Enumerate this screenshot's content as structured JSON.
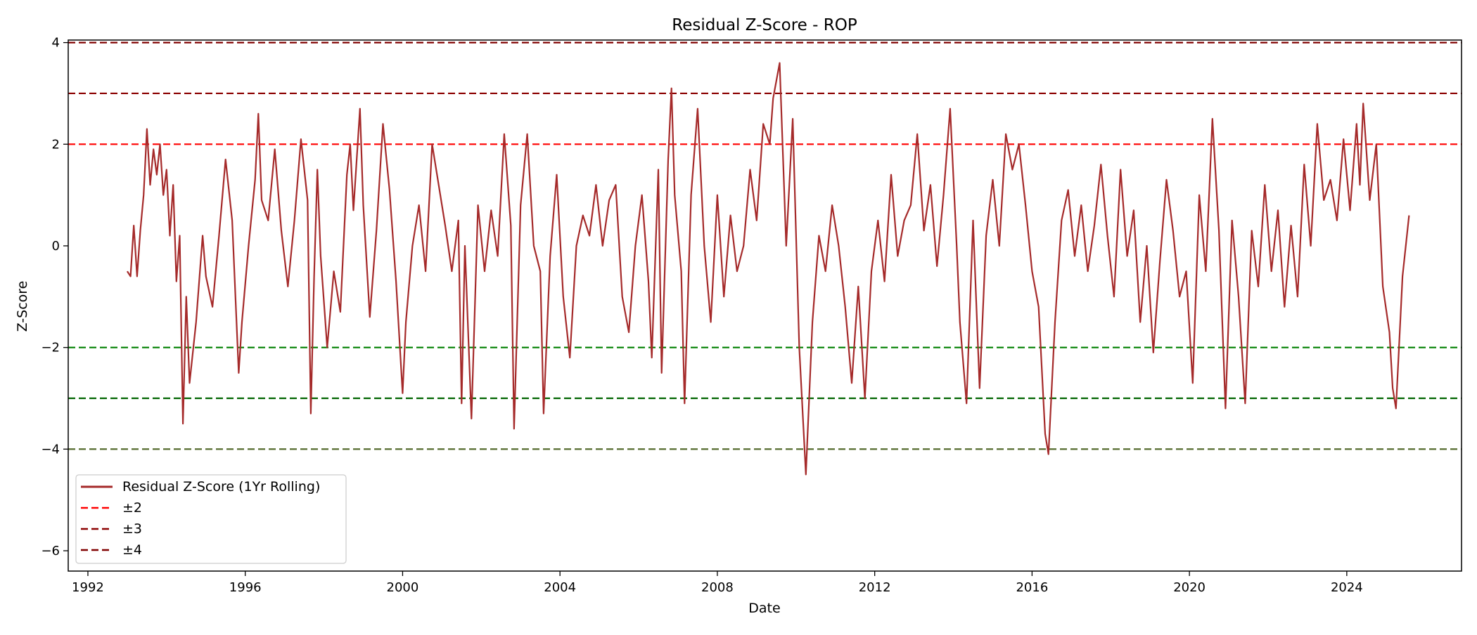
{
  "chart_data": {
    "type": "line",
    "title": "Residual Z-Score - ROP",
    "xlabel": "Date",
    "ylabel": "Z-Score",
    "xlim": [
      "1991-07-01",
      "2026-12-01"
    ],
    "ylim": [
      -6.4,
      4.05
    ],
    "x_ticks": [
      "1992",
      "1996",
      "2000",
      "2004",
      "2008",
      "2012",
      "2016",
      "2020",
      "2024"
    ],
    "y_ticks": [
      {
        "value": 4,
        "label": "4"
      },
      {
        "value": 2,
        "label": "2"
      },
      {
        "value": 0,
        "label": "0"
      },
      {
        "value": -2,
        "label": "−2"
      },
      {
        "value": -4,
        "label": "−4"
      },
      {
        "value": -6,
        "label": "−6"
      }
    ],
    "grid": false,
    "legend_position": "lower-left",
    "legend": [
      "Residual Z-Score (1Yr Rolling)",
      "±2",
      "±3",
      "±4"
    ],
    "series": [
      {
        "name": "Residual Z-Score (1Yr Rolling)",
        "color": "#a52a2a",
        "points": [
          [
            "1993-01",
            -0.5
          ],
          [
            "1993-02",
            -0.6
          ],
          [
            "1993-03",
            0.4
          ],
          [
            "1993-04",
            -0.6
          ],
          [
            "1993-05",
            0.3
          ],
          [
            "1993-06",
            1.0
          ],
          [
            "1993-07",
            2.3
          ],
          [
            "1993-08",
            1.2
          ],
          [
            "1993-09",
            1.9
          ],
          [
            "1993-10",
            1.4
          ],
          [
            "1993-11",
            2.0
          ],
          [
            "1993-12",
            1.0
          ],
          [
            "1994-01",
            1.5
          ],
          [
            "1994-02",
            0.2
          ],
          [
            "1994-03",
            1.2
          ],
          [
            "1994-04",
            -0.7
          ],
          [
            "1994-05",
            0.2
          ],
          [
            "1994-06",
            -3.5
          ],
          [
            "1994-07",
            -1.0
          ],
          [
            "1994-08",
            -2.7
          ],
          [
            "1994-10",
            -1.5
          ],
          [
            "1994-12",
            0.2
          ],
          [
            "1995-01",
            -0.6
          ],
          [
            "1995-03",
            -1.2
          ],
          [
            "1995-05",
            0.2
          ],
          [
            "1995-07",
            1.7
          ],
          [
            "1995-09",
            0.5
          ],
          [
            "1995-11",
            -2.5
          ],
          [
            "1995-12",
            -1.5
          ],
          [
            "1996-02",
            0.0
          ],
          [
            "1996-04",
            1.3
          ],
          [
            "1996-05",
            2.6
          ],
          [
            "1996-06",
            0.9
          ],
          [
            "1996-08",
            0.5
          ],
          [
            "1996-10",
            1.9
          ],
          [
            "1996-12",
            0.3
          ],
          [
            "1997-02",
            -0.8
          ],
          [
            "1997-04",
            0.5
          ],
          [
            "1997-06",
            2.1
          ],
          [
            "1997-08",
            0.9
          ],
          [
            "1997-09",
            -3.3
          ],
          [
            "1997-10",
            -0.6
          ],
          [
            "1997-11",
            1.5
          ],
          [
            "1997-12",
            -0.2
          ],
          [
            "1998-02",
            -2.0
          ],
          [
            "1998-04",
            -0.5
          ],
          [
            "1998-06",
            -1.3
          ],
          [
            "1998-08",
            1.4
          ],
          [
            "1998-09",
            2.0
          ],
          [
            "1998-10",
            0.7
          ],
          [
            "1998-12",
            2.7
          ],
          [
            "1999-01",
            0.8
          ],
          [
            "1999-03",
            -1.4
          ],
          [
            "1999-05",
            0.3
          ],
          [
            "1999-07",
            2.4
          ],
          [
            "1999-09",
            1.1
          ],
          [
            "1999-11",
            -0.7
          ],
          [
            "2000-01",
            -2.9
          ],
          [
            "2000-02",
            -1.5
          ],
          [
            "2000-04",
            0.0
          ],
          [
            "2000-06",
            0.8
          ],
          [
            "2000-08",
            -0.5
          ],
          [
            "2000-10",
            2.0
          ],
          [
            "2000-12",
            1.2
          ],
          [
            "2001-02",
            0.4
          ],
          [
            "2001-04",
            -0.5
          ],
          [
            "2001-06",
            0.5
          ],
          [
            "2001-07",
            -3.1
          ],
          [
            "2001-08",
            0.0
          ],
          [
            "2001-10",
            -3.4
          ],
          [
            "2001-12",
            0.8
          ],
          [
            "2002-02",
            -0.5
          ],
          [
            "2002-04",
            0.7
          ],
          [
            "2002-06",
            -0.2
          ],
          [
            "2002-08",
            2.2
          ],
          [
            "2002-10",
            0.4
          ],
          [
            "2002-11",
            -3.6
          ],
          [
            "2003-01",
            0.8
          ],
          [
            "2003-03",
            2.2
          ],
          [
            "2003-05",
            0.0
          ],
          [
            "2003-07",
            -0.5
          ],
          [
            "2003-08",
            -3.3
          ],
          [
            "2003-10",
            -0.2
          ],
          [
            "2003-12",
            1.4
          ],
          [
            "2004-02",
            -1.0
          ],
          [
            "2004-04",
            -2.2
          ],
          [
            "2004-06",
            0.0
          ],
          [
            "2004-08",
            0.6
          ],
          [
            "2004-10",
            0.2
          ],
          [
            "2004-12",
            1.2
          ],
          [
            "2005-02",
            0.0
          ],
          [
            "2005-04",
            0.9
          ],
          [
            "2005-06",
            1.2
          ],
          [
            "2005-08",
            -1.0
          ],
          [
            "2005-10",
            -1.7
          ],
          [
            "2005-12",
            0.0
          ],
          [
            "2006-02",
            1.0
          ],
          [
            "2006-04",
            -0.7
          ],
          [
            "2006-05",
            -2.2
          ],
          [
            "2006-07",
            1.5
          ],
          [
            "2006-08",
            -2.5
          ],
          [
            "2006-10",
            1.7
          ],
          [
            "2006-11",
            3.1
          ],
          [
            "2006-12",
            1.0
          ],
          [
            "2007-02",
            -0.5
          ],
          [
            "2007-03",
            -3.1
          ],
          [
            "2007-05",
            1.0
          ],
          [
            "2007-07",
            2.7
          ],
          [
            "2007-09",
            0.0
          ],
          [
            "2007-11",
            -1.5
          ],
          [
            "2008-01",
            1.0
          ],
          [
            "2008-03",
            -1.0
          ],
          [
            "2008-05",
            0.6
          ],
          [
            "2008-07",
            -0.5
          ],
          [
            "2008-09",
            0.0
          ],
          [
            "2008-11",
            1.5
          ],
          [
            "2009-01",
            0.5
          ],
          [
            "2009-03",
            2.4
          ],
          [
            "2009-05",
            2.0
          ],
          [
            "2009-06",
            2.9
          ],
          [
            "2009-08",
            3.6
          ],
          [
            "2009-10",
            0.0
          ],
          [
            "2009-12",
            2.5
          ],
          [
            "2010-02",
            -2.0
          ],
          [
            "2010-04",
            -4.5
          ],
          [
            "2010-06",
            -1.5
          ],
          [
            "2010-08",
            0.2
          ],
          [
            "2010-10",
            -0.5
          ],
          [
            "2010-12",
            0.8
          ],
          [
            "2011-02",
            0.0
          ],
          [
            "2011-04",
            -1.2
          ],
          [
            "2011-06",
            -2.7
          ],
          [
            "2011-08",
            -0.8
          ],
          [
            "2011-10",
            -3.0
          ],
          [
            "2011-12",
            -0.5
          ],
          [
            "2012-02",
            0.5
          ],
          [
            "2012-04",
            -0.7
          ],
          [
            "2012-06",
            1.4
          ],
          [
            "2012-08",
            -0.2
          ],
          [
            "2012-10",
            0.5
          ],
          [
            "2012-12",
            0.8
          ],
          [
            "2013-02",
            2.2
          ],
          [
            "2013-04",
            0.3
          ],
          [
            "2013-06",
            1.2
          ],
          [
            "2013-08",
            -0.4
          ],
          [
            "2013-10",
            1.0
          ],
          [
            "2013-12",
            2.7
          ],
          [
            "2014-02",
            0.0
          ],
          [
            "2014-03",
            -1.5
          ],
          [
            "2014-05",
            -3.1
          ],
          [
            "2014-07",
            0.5
          ],
          [
            "2014-09",
            -2.8
          ],
          [
            "2014-11",
            0.2
          ],
          [
            "2015-01",
            1.3
          ],
          [
            "2015-03",
            0.0
          ],
          [
            "2015-05",
            2.2
          ],
          [
            "2015-07",
            1.5
          ],
          [
            "2015-09",
            2.0
          ],
          [
            "2015-11",
            0.8
          ],
          [
            "2016-01",
            -0.5
          ],
          [
            "2016-03",
            -1.2
          ],
          [
            "2016-05",
            -3.7
          ],
          [
            "2016-06",
            -4.1
          ],
          [
            "2016-08",
            -1.5
          ],
          [
            "2016-10",
            0.5
          ],
          [
            "2016-12",
            1.1
          ],
          [
            "2017-02",
            -0.2
          ],
          [
            "2017-04",
            0.8
          ],
          [
            "2017-06",
            -0.5
          ],
          [
            "2017-08",
            0.4
          ],
          [
            "2017-10",
            1.6
          ],
          [
            "2017-12",
            0.2
          ],
          [
            "2018-02",
            -1.0
          ],
          [
            "2018-04",
            1.5
          ],
          [
            "2018-06",
            -0.2
          ],
          [
            "2018-08",
            0.7
          ],
          [
            "2018-10",
            -1.5
          ],
          [
            "2018-12",
            0.0
          ],
          [
            "2019-02",
            -2.1
          ],
          [
            "2019-04",
            -0.3
          ],
          [
            "2019-06",
            1.3
          ],
          [
            "2019-08",
            0.3
          ],
          [
            "2019-10",
            -1.0
          ],
          [
            "2019-12",
            -0.5
          ],
          [
            "2020-02",
            -2.7
          ],
          [
            "2020-04",
            1.0
          ],
          [
            "2020-06",
            -0.5
          ],
          [
            "2020-08",
            2.5
          ],
          [
            "2020-10",
            0.3
          ],
          [
            "2020-12",
            -3.2
          ],
          [
            "2021-02",
            0.5
          ],
          [
            "2021-04",
            -1.0
          ],
          [
            "2021-06",
            -3.1
          ],
          [
            "2021-08",
            0.3
          ],
          [
            "2021-10",
            -0.8
          ],
          [
            "2021-12",
            1.2
          ],
          [
            "2022-02",
            -0.5
          ],
          [
            "2022-04",
            0.7
          ],
          [
            "2022-06",
            -1.2
          ],
          [
            "2022-08",
            0.4
          ],
          [
            "2022-10",
            -1.0
          ],
          [
            "2022-12",
            1.6
          ],
          [
            "2023-02",
            0.0
          ],
          [
            "2023-04",
            2.4
          ],
          [
            "2023-06",
            0.9
          ],
          [
            "2023-08",
            1.3
          ],
          [
            "2023-10",
            0.5
          ],
          [
            "2023-12",
            2.1
          ],
          [
            "2024-02",
            0.7
          ],
          [
            "2024-04",
            2.4
          ],
          [
            "2024-05",
            1.2
          ],
          [
            "2024-06",
            2.8
          ],
          [
            "2024-08",
            0.9
          ],
          [
            "2024-10",
            2.0
          ],
          [
            "2024-12",
            -0.8
          ],
          [
            "2025-02",
            -1.7
          ],
          [
            "2025-03",
            -2.8
          ],
          [
            "2025-04",
            -3.2
          ],
          [
            "2025-06",
            -0.6
          ],
          [
            "2025-08",
            0.6
          ]
        ]
      }
    ],
    "reference_lines": [
      {
        "group": "±2",
        "value": 2,
        "color": "#ff0000"
      },
      {
        "group": "±2",
        "value": -2,
        "color": "#008000"
      },
      {
        "group": "±3",
        "value": 3,
        "color": "#8b0000"
      },
      {
        "group": "±3",
        "value": -3,
        "color": "#006400"
      },
      {
        "group": "±4",
        "value": 4,
        "color": "#800000"
      },
      {
        "group": "±4",
        "value": -4,
        "color": "#556b2f"
      }
    ],
    "legend_colors": [
      "#a52a2a",
      "#ff0000",
      "#8b0000",
      "#800000"
    ]
  }
}
